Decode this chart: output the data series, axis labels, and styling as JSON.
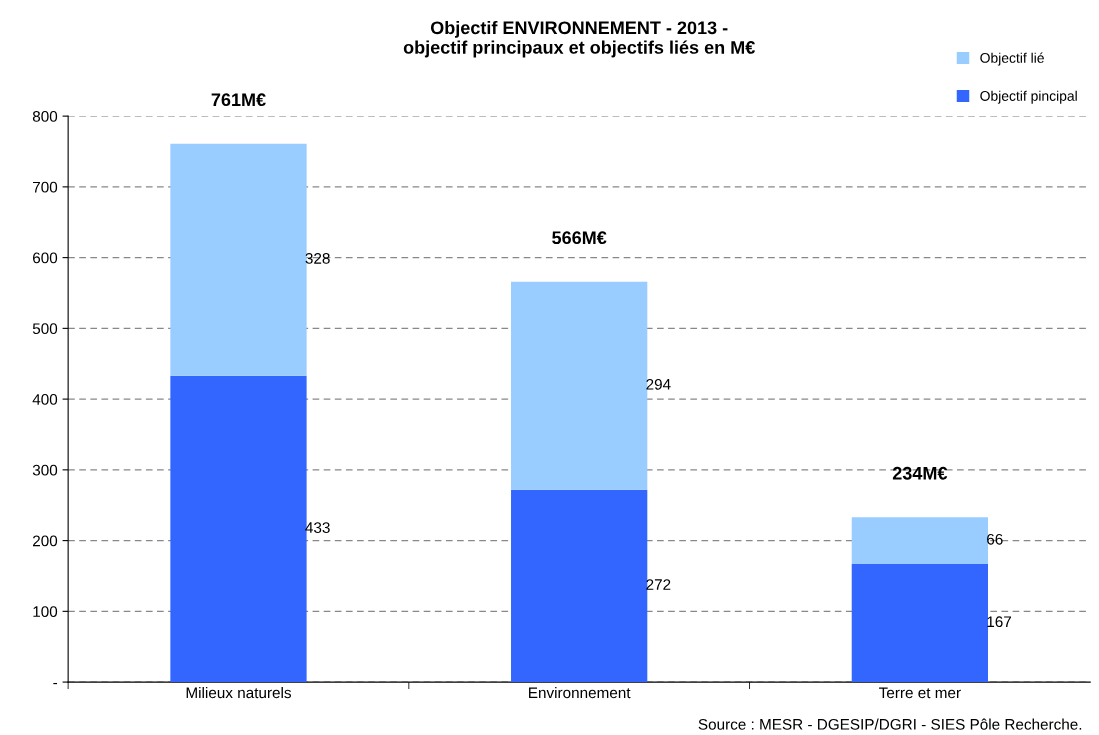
{
  "chart_data": {
    "type": "bar",
    "stacked": true,
    "title": "Objectif ENVIRONNEMENT - 2013 -\nobjectif principaux et objectifs liés en M€",
    "categories": [
      "Milieux naturels",
      "Environnement",
      "Terre et mer"
    ],
    "series": [
      {
        "name": "Objectif pincipal",
        "color": "#3366ff",
        "values": [
          433,
          272,
          167
        ],
        "value_labels": [
          "433",
          "272",
          "167"
        ]
      },
      {
        "name": "Objectif lié",
        "color": "#99ccff",
        "values": [
          328,
          294,
          66
        ],
        "value_labels": [
          "328",
          "294",
          "66"
        ]
      }
    ],
    "totals": [
      "761M€",
      "566M€",
      "234M€"
    ],
    "ylim": [
      0,
      800
    ],
    "yticks": [
      {
        "value": 0,
        "label": "-"
      },
      100,
      200,
      300,
      400,
      500,
      600,
      700,
      800
    ],
    "grid": "y",
    "legend": "top right",
    "annotations": [
      "Source : MESR - DGESIP/DGRI - SIES Pôle Recherche."
    ]
  }
}
